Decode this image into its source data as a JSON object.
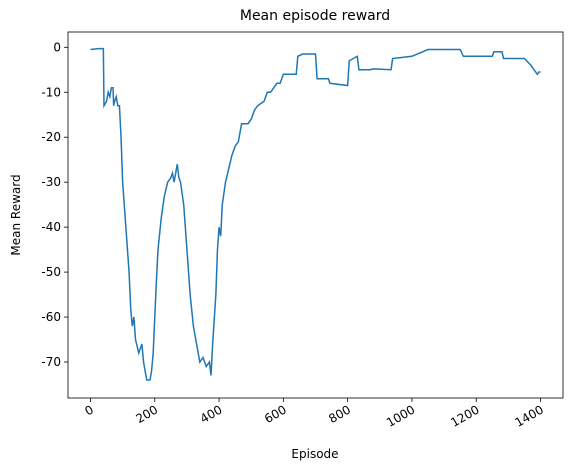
{
  "chart_data": {
    "type": "line",
    "title": "Mean episode reward",
    "x_label": "Episode",
    "y_label": "Mean Reward",
    "x": [
      0,
      25,
      40,
      42,
      50,
      55,
      60,
      65,
      70,
      72,
      75,
      80,
      85,
      90,
      95,
      100,
      110,
      120,
      125,
      130,
      135,
      140,
      150,
      160,
      165,
      175,
      185,
      190,
      195,
      200,
      205,
      210,
      220,
      230,
      240,
      250,
      255,
      260,
      265,
      270,
      275,
      280,
      290,
      300,
      310,
      320,
      330,
      340,
      350,
      360,
      370,
      375,
      380,
      390,
      395,
      400,
      405,
      410,
      420,
      430,
      440,
      450,
      460,
      470,
      480,
      490,
      500,
      510,
      520,
      540,
      550,
      560,
      570,
      580,
      590,
      600,
      640,
      645,
      660,
      700,
      705,
      740,
      745,
      800,
      805,
      830,
      835,
      870,
      880,
      935,
      940,
      1000,
      1050,
      1150,
      1160,
      1250,
      1255,
      1280,
      1285,
      1350,
      1370,
      1390,
      1395,
      1400
    ],
    "series": [
      {
        "name": "Mean Reward",
        "color": "#1f77b4",
        "values": [
          -0.5,
          -0.3,
          -0.3,
          -13,
          -12,
          -10,
          -11,
          -9,
          -9,
          -13,
          -12,
          -11,
          -13,
          -13,
          -20,
          -30,
          -40,
          -50,
          -58,
          -62,
          -60,
          -65,
          -68,
          -66,
          -70,
          -74,
          -74,
          -72,
          -68,
          -60,
          -52,
          -45,
          -38,
          -33,
          -30,
          -29,
          -28,
          -30,
          -28,
          -26,
          -29,
          -30,
          -35,
          -45,
          -55,
          -62,
          -66,
          -70,
          -69,
          -71,
          -70,
          -73,
          -66,
          -55,
          -45,
          -40,
          -42,
          -35,
          -30,
          -27,
          -24,
          -22,
          -21,
          -17,
          -17,
          -17,
          -16,
          -14,
          -13,
          -12,
          -10,
          -10,
          -9,
          -8,
          -8,
          -6,
          -6,
          -2,
          -1.5,
          -1.5,
          -7,
          -7,
          -8,
          -8.5,
          -3,
          -2,
          -5,
          -5,
          -4.8,
          -5,
          -2.5,
          -2,
          -0.5,
          -0.5,
          -2,
          -2,
          -1,
          -1,
          -2.5,
          -2.5,
          -4,
          -6,
          -5.5,
          -5.5
        ]
      }
    ],
    "xlim": [
      -70,
      1470
    ],
    "ylim": [
      -78,
      3.4
    ],
    "xticks": [
      0,
      200,
      400,
      600,
      800,
      1000,
      1200,
      1400
    ],
    "yticks": [
      -70,
      -60,
      -50,
      -40,
      -30,
      -20,
      -10,
      0
    ]
  }
}
